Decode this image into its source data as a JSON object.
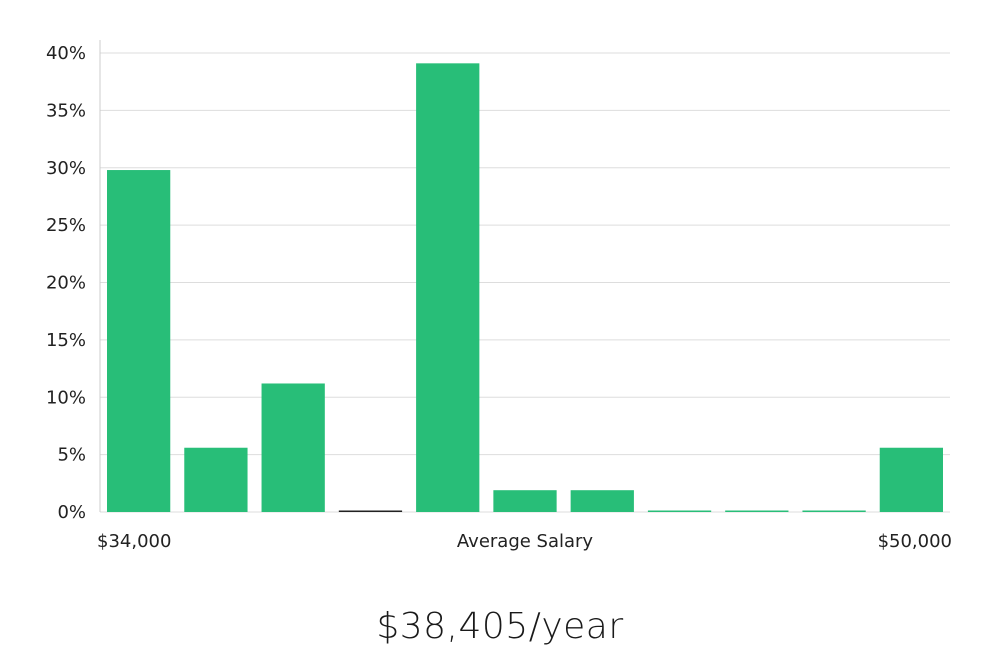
{
  "chart_data": {
    "type": "bar",
    "title": "",
    "xlabel": "Average Salary",
    "x_range_labels": {
      "min": "$34,000",
      "max": "$50,000"
    },
    "ylabel": "",
    "ylim": [
      0,
      40
    ],
    "y_ticks": [
      0,
      5,
      10,
      15,
      20,
      25,
      30,
      35,
      40
    ],
    "y_tick_format": "%",
    "grid": true,
    "legend": "none",
    "bar_color": "#28be78",
    "values": [
      29.8,
      5.6,
      11.2,
      0,
      39.1,
      1.9,
      1.9,
      0,
      0,
      0,
      5.6
    ]
  },
  "summary": {
    "average_salary": "$38,405/year"
  }
}
